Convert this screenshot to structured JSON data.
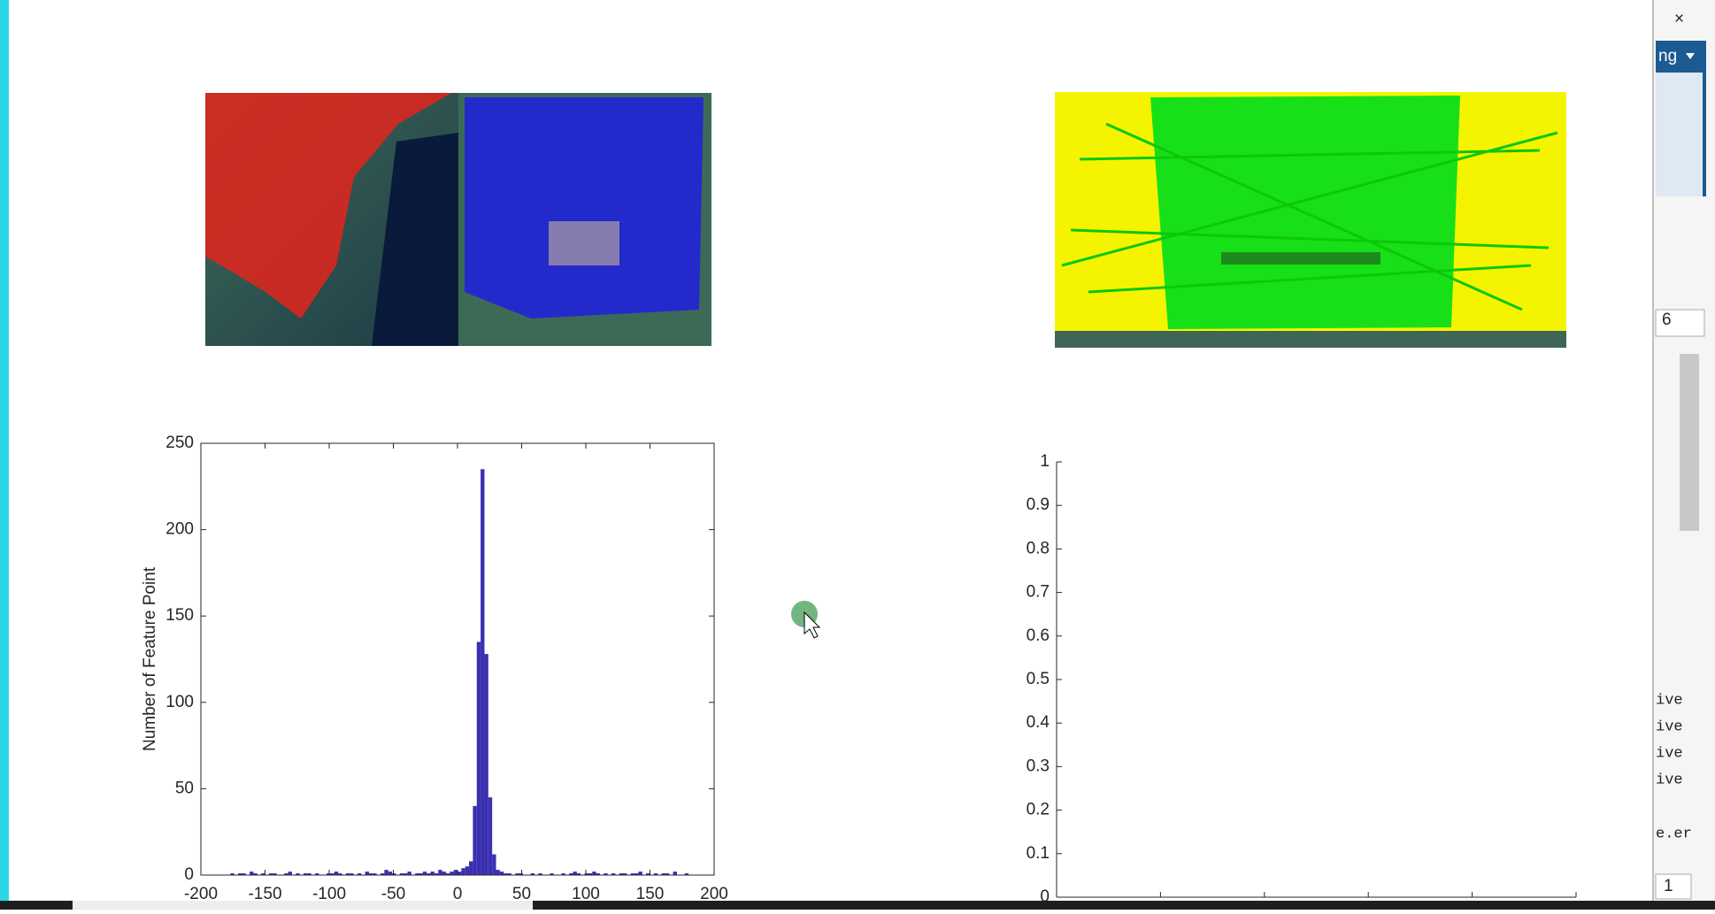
{
  "chart_data": [
    {
      "type": "histogram",
      "ylabel": "Number of Feature Point",
      "color": "#3a2fb0",
      "bins": [
        -180,
        -177,
        -174,
        -171,
        -168,
        -165,
        -162,
        -159,
        -156,
        -153,
        -150,
        -147,
        -144,
        -141,
        -138,
        -135,
        -132,
        -129,
        -126,
        -123,
        -120,
        -117,
        -114,
        -111,
        -108,
        -105,
        -102,
        -99,
        -96,
        -93,
        -90,
        -87,
        -84,
        -81,
        -78,
        -75,
        -72,
        -69,
        -66,
        -63,
        -60,
        -57,
        -54,
        -51,
        -48,
        -45,
        -42,
        -39,
        -36,
        -33,
        -30,
        -27,
        -24,
        -21,
        -18,
        -15,
        -12,
        -9,
        -6,
        -3,
        0,
        3,
        6,
        9,
        12,
        15,
        18,
        21,
        24,
        27,
        30,
        33,
        36,
        39,
        42,
        45,
        48,
        51,
        54,
        57,
        60,
        63,
        66,
        69,
        72,
        75,
        78,
        81,
        84,
        87,
        90,
        93,
        96,
        99,
        102,
        105,
        108,
        111,
        114,
        117,
        120,
        123,
        126,
        129,
        132,
        135,
        138,
        141,
        144,
        147,
        150,
        153,
        156,
        159,
        162,
        165,
        168,
        171,
        174,
        177,
        180
      ],
      "values": [
        0,
        1,
        0,
        1,
        1,
        0,
        2,
        1,
        0,
        1,
        0,
        1,
        1,
        0,
        0,
        1,
        2,
        0,
        1,
        0,
        1,
        1,
        0,
        1,
        0,
        0,
        1,
        1,
        2,
        1,
        0,
        1,
        1,
        0,
        1,
        0,
        2,
        1,
        1,
        0,
        1,
        3,
        2,
        1,
        0,
        1,
        1,
        2,
        0,
        1,
        1,
        2,
        1,
        2,
        1,
        3,
        2,
        1,
        2,
        3,
        2,
        4,
        5,
        8,
        40,
        135,
        235,
        128,
        45,
        12,
        3,
        2,
        1,
        1,
        0,
        1,
        1,
        0,
        0,
        1,
        0,
        1,
        0,
        0,
        1,
        0,
        0,
        1,
        0,
        1,
        2,
        1,
        0,
        1,
        1,
        2,
        1,
        0,
        1,
        0,
        1,
        0,
        1,
        1,
        0,
        1,
        1,
        2,
        0,
        1,
        0,
        1,
        0,
        1,
        1,
        0,
        2,
        0,
        0,
        1
      ],
      "xlim": [
        -200,
        200
      ],
      "xticks": [
        -200,
        -150,
        -100,
        -50,
        0,
        50,
        100,
        150,
        200
      ],
      "ylim": [
        0,
        250
      ],
      "yticks": [
        0,
        50,
        100,
        150,
        200,
        250
      ]
    },
    {
      "type": "empty",
      "ylim": [
        0,
        1
      ],
      "yticks": [
        0,
        0.1,
        0.2,
        0.3,
        0.4,
        0.5,
        0.6,
        0.7,
        0.8,
        0.9,
        1
      ]
    }
  ],
  "side_panel": {
    "dropdown": "ng",
    "field": "6",
    "lines": [
      "ive",
      "ive",
      "ive",
      "ive"
    ],
    "footer": "e.er",
    "bottom_field": "1"
  }
}
